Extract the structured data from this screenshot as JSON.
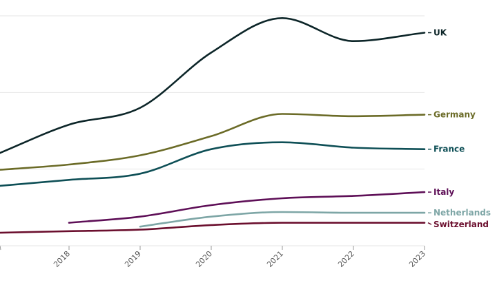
{
  "chart_data": {
    "type": "line",
    "x_ticks": [
      "2018",
      "2019",
      "2020",
      "2021",
      "2022",
      "2023"
    ],
    "x_range": [
      2017,
      2023
    ],
    "y_range": [
      0,
      300
    ],
    "grid_y": [
      0,
      100,
      200,
      300
    ],
    "series": [
      {
        "name": "UK",
        "color": "#0c2528",
        "points": [
          [
            2017,
            120
          ],
          [
            2018,
            158
          ],
          [
            2019,
            180
          ],
          [
            2020,
            252
          ],
          [
            2021,
            297
          ],
          [
            2022,
            267
          ],
          [
            2023,
            278
          ]
        ]
      },
      {
        "name": "Germany",
        "color": "#6b6b27",
        "points": [
          [
            2017,
            99
          ],
          [
            2018,
            106
          ],
          [
            2019,
            118
          ],
          [
            2020,
            143
          ],
          [
            2021,
            172
          ],
          [
            2022,
            169
          ],
          [
            2023,
            171
          ]
        ]
      },
      {
        "name": "France",
        "color": "#0e4f56",
        "points": [
          [
            2017,
            78
          ],
          [
            2018,
            86
          ],
          [
            2019,
            94
          ],
          [
            2020,
            126
          ],
          [
            2021,
            135
          ],
          [
            2022,
            128
          ],
          [
            2023,
            126
          ]
        ]
      },
      {
        "name": "Italy",
        "color": "#5e0f57",
        "points": [
          [
            2018,
            30
          ],
          [
            2019,
            38
          ],
          [
            2020,
            53
          ],
          [
            2021,
            62
          ],
          [
            2022,
            65
          ],
          [
            2023,
            70
          ]
        ]
      },
      {
        "name": "Netherlands",
        "color": "#7ea6a6",
        "points": [
          [
            2019,
            25
          ],
          [
            2020,
            38
          ],
          [
            2021,
            44
          ],
          [
            2022,
            43
          ],
          [
            2023,
            43
          ]
        ]
      },
      {
        "name": "Switzerland",
        "color": "#6b0f2e",
        "points": [
          [
            2017,
            17
          ],
          [
            2018,
            19
          ],
          [
            2019,
            21
          ],
          [
            2020,
            27
          ],
          [
            2021,
            30
          ],
          [
            2022,
            30
          ],
          [
            2023,
            30
          ]
        ]
      }
    ]
  }
}
